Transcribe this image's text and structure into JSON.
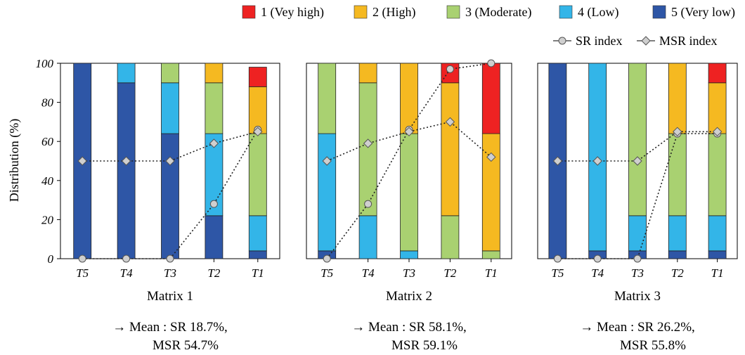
{
  "chart_data": {
    "type": "bar",
    "stacked": true,
    "ylabel": "Distribution (%)",
    "ylim": [
      0,
      100
    ],
    "yticks": [
      0,
      20,
      40,
      60,
      80,
      100
    ],
    "categories": [
      "T5",
      "T4",
      "T3",
      "T2",
      "T1"
    ],
    "legend": {
      "position": "top-right",
      "levels": [
        {
          "label": "1 (Vey high)",
          "color": "#ee2222"
        },
        {
          "label": "2 (High)",
          "color": "#f5b921"
        },
        {
          "label": "3 (Moderate)",
          "color": "#a9d171"
        },
        {
          "label": "4 (Low)",
          "color": "#33b5e8"
        },
        {
          "label": "5 (Very low)",
          "color": "#2e56a6"
        }
      ],
      "lines": [
        {
          "label": "SR index",
          "marker": "circle"
        },
        {
          "label": "MSR index",
          "marker": "diamond"
        }
      ]
    },
    "panels": [
      {
        "title": "Matrix 1",
        "mean_line1": "→ Mean : SR 18.7%,",
        "mean_line2": "MSR 54.7%",
        "stacks": [
          [
            0,
            0,
            0,
            0,
            100
          ],
          [
            0,
            0,
            0,
            10,
            90
          ],
          [
            0,
            0,
            10,
            26,
            64
          ],
          [
            0,
            10,
            26,
            42,
            22
          ],
          [
            10,
            24,
            42,
            18,
            4
          ]
        ],
        "sr": [
          0,
          0,
          0,
          28,
          66
        ],
        "msr": [
          50,
          50,
          50,
          59,
          65
        ]
      },
      {
        "title": "Matrix 2",
        "mean_line1": "→ Mean : SR 58.1%,",
        "mean_line2": "MSR 59.1%",
        "stacks": [
          [
            0,
            0,
            36,
            60,
            4
          ],
          [
            0,
            10,
            68,
            22,
            0
          ],
          [
            0,
            36,
            60,
            4,
            0
          ],
          [
            10,
            68,
            22,
            0,
            0
          ],
          [
            36,
            60,
            4,
            0,
            0
          ]
        ],
        "sr": [
          0,
          28,
          66,
          97,
          100
        ],
        "msr": [
          50,
          59,
          65,
          70,
          52
        ]
      },
      {
        "title": "Matrix 3",
        "mean_line1": "→ Mean : SR 26.2%,",
        "mean_line2": "MSR 55.8%",
        "stacks": [
          [
            0,
            0,
            0,
            0,
            100
          ],
          [
            0,
            0,
            0,
            96,
            4
          ],
          [
            0,
            0,
            78,
            18,
            4
          ],
          [
            0,
            36,
            42,
            18,
            4
          ],
          [
            10,
            26,
            42,
            18,
            4
          ]
        ],
        "sr": [
          0,
          0,
          0,
          64,
          64
        ],
        "msr": [
          50,
          50,
          50,
          65,
          65
        ]
      }
    ]
  }
}
